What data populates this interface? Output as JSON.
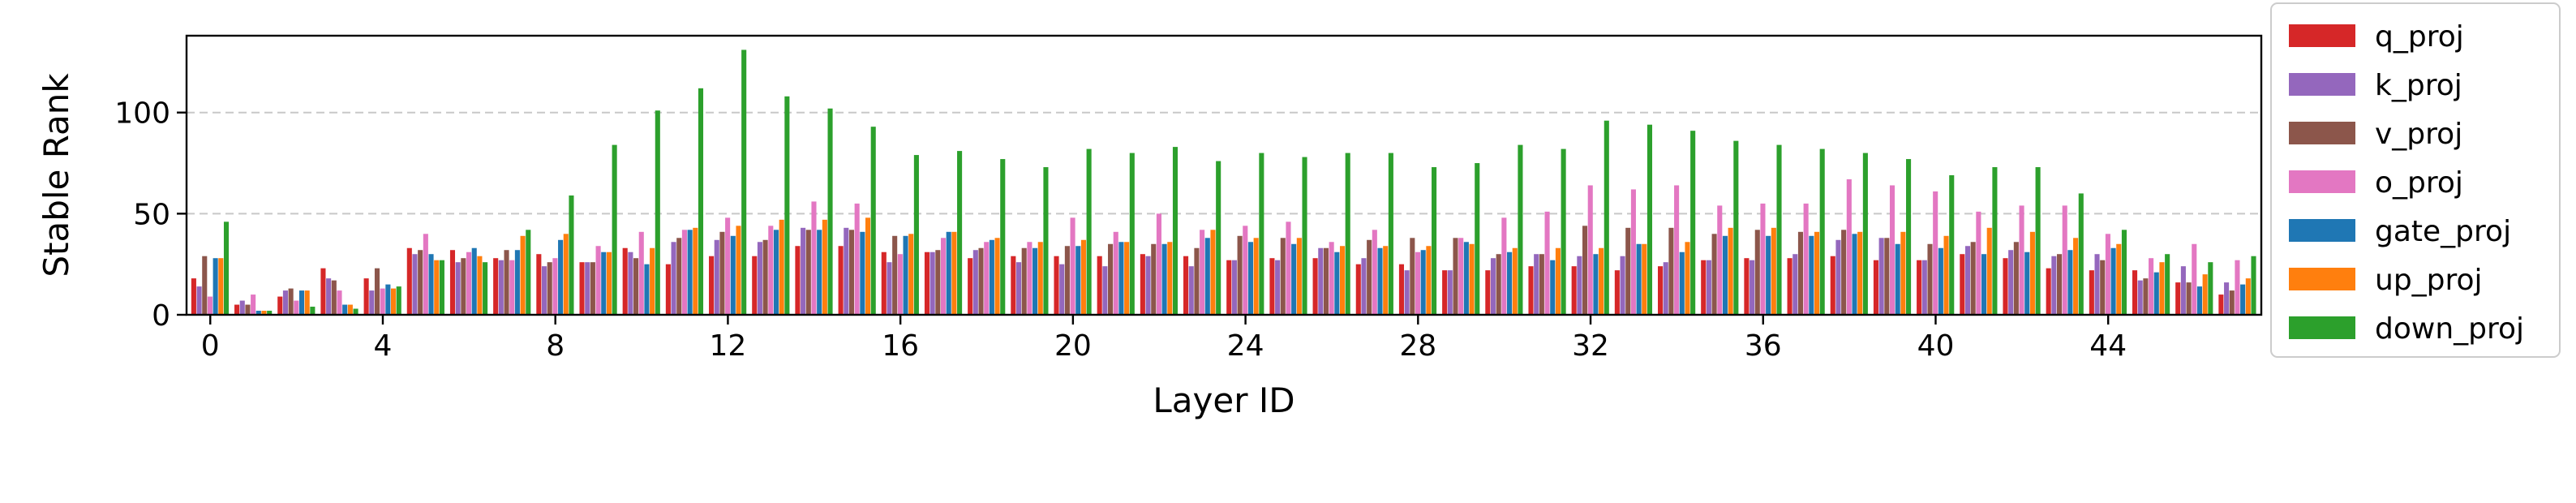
{
  "chart_data": {
    "type": "bar",
    "xlabel": "Layer ID",
    "ylabel": "Stable Rank",
    "xlim": [
      -0.55,
      47.55
    ],
    "ylim": [
      0,
      138
    ],
    "yticks": [
      0,
      50,
      100
    ],
    "xticks": [
      0,
      4,
      8,
      12,
      16,
      20,
      24,
      28,
      32,
      36,
      40,
      44
    ],
    "grid": "horizontal dashed",
    "legend_position": "outside-right",
    "categories": [
      0,
      1,
      2,
      3,
      4,
      5,
      6,
      7,
      8,
      9,
      10,
      11,
      12,
      13,
      14,
      15,
      16,
      17,
      18,
      19,
      20,
      21,
      22,
      23,
      24,
      25,
      26,
      27,
      28,
      29,
      30,
      31,
      32,
      33,
      34,
      35,
      36,
      37,
      38,
      39,
      40,
      41,
      42,
      43,
      44,
      45,
      46,
      47
    ],
    "series": [
      {
        "name": "q_proj",
        "color": "#d62728",
        "values": [
          18,
          5,
          9,
          23,
          18,
          33,
          32,
          28,
          30,
          26,
          33,
          25,
          29,
          29,
          34,
          34,
          31,
          31,
          28,
          29,
          29,
          29,
          30,
          29,
          27,
          28,
          28,
          25,
          25,
          22,
          22,
          24,
          24,
          22,
          24,
          27,
          28,
          28,
          29,
          27,
          27,
          30,
          28,
          23,
          22,
          22,
          16,
          10
        ]
      },
      {
        "name": "k_proj",
        "color": "#9467bd",
        "values": [
          14,
          7,
          12,
          18,
          12,
          30,
          26,
          27,
          24,
          26,
          31,
          36,
          37,
          36,
          43,
          43,
          26,
          31,
          32,
          26,
          25,
          24,
          29,
          24,
          27,
          27,
          33,
          28,
          22,
          22,
          28,
          30,
          29,
          29,
          26,
          27,
          27,
          30,
          37,
          38,
          27,
          34,
          32,
          29,
          30,
          17,
          24,
          16
        ]
      },
      {
        "name": "v_proj",
        "color": "#8c564b",
        "values": [
          29,
          5,
          13,
          17,
          23,
          32,
          28,
          32,
          26,
          26,
          28,
          38,
          41,
          37,
          42,
          42,
          39,
          32,
          33,
          33,
          34,
          35,
          35,
          33,
          39,
          38,
          33,
          37,
          38,
          38,
          30,
          30,
          44,
          43,
          43,
          40,
          42,
          41,
          42,
          38,
          35,
          36,
          36,
          30,
          27,
          18,
          16,
          12
        ]
      },
      {
        "name": "o_proj",
        "color": "#e377c2",
        "values": [
          9,
          10,
          7,
          12,
          13,
          40,
          31,
          27,
          28,
          34,
          41,
          42,
          48,
          44,
          56,
          55,
          30,
          38,
          36,
          36,
          48,
          41,
          50,
          42,
          44,
          46,
          36,
          42,
          31,
          38,
          48,
          51,
          64,
          62,
          64,
          54,
          55,
          55,
          67,
          64,
          61,
          51,
          54,
          54,
          40,
          28,
          35,
          27
        ]
      },
      {
        "name": "gate_proj",
        "color": "#1f77b4",
        "values": [
          28,
          2,
          12,
          5,
          15,
          30,
          33,
          32,
          37,
          31,
          25,
          42,
          39,
          42,
          42,
          41,
          39,
          41,
          37,
          33,
          34,
          36,
          35,
          38,
          36,
          35,
          31,
          33,
          32,
          36,
          31,
          27,
          30,
          35,
          31,
          39,
          39,
          39,
          40,
          35,
          33,
          30,
          31,
          32,
          33,
          21,
          14,
          15
        ]
      },
      {
        "name": "up_proj",
        "color": "#ff7f0e",
        "values": [
          28,
          2,
          12,
          5,
          13,
          27,
          29,
          39,
          40,
          31,
          33,
          43,
          44,
          47,
          47,
          48,
          40,
          41,
          38,
          36,
          37,
          36,
          36,
          42,
          38,
          38,
          34,
          34,
          34,
          35,
          33,
          33,
          33,
          35,
          36,
          43,
          43,
          41,
          41,
          41,
          39,
          43,
          41,
          38,
          35,
          26,
          20,
          18
        ]
      },
      {
        "name": "down_proj",
        "color": "#2ca02c",
        "values": [
          46,
          2,
          4,
          3,
          14,
          27,
          26,
          42,
          59,
          84,
          101,
          112,
          131,
          108,
          102,
          93,
          79,
          81,
          77,
          73,
          82,
          80,
          83,
          76,
          80,
          78,
          80,
          80,
          73,
          75,
          84,
          82,
          96,
          94,
          91,
          86,
          84,
          82,
          80,
          77,
          69,
          73,
          73,
          60,
          42,
          30,
          26,
          29
        ]
      }
    ]
  }
}
